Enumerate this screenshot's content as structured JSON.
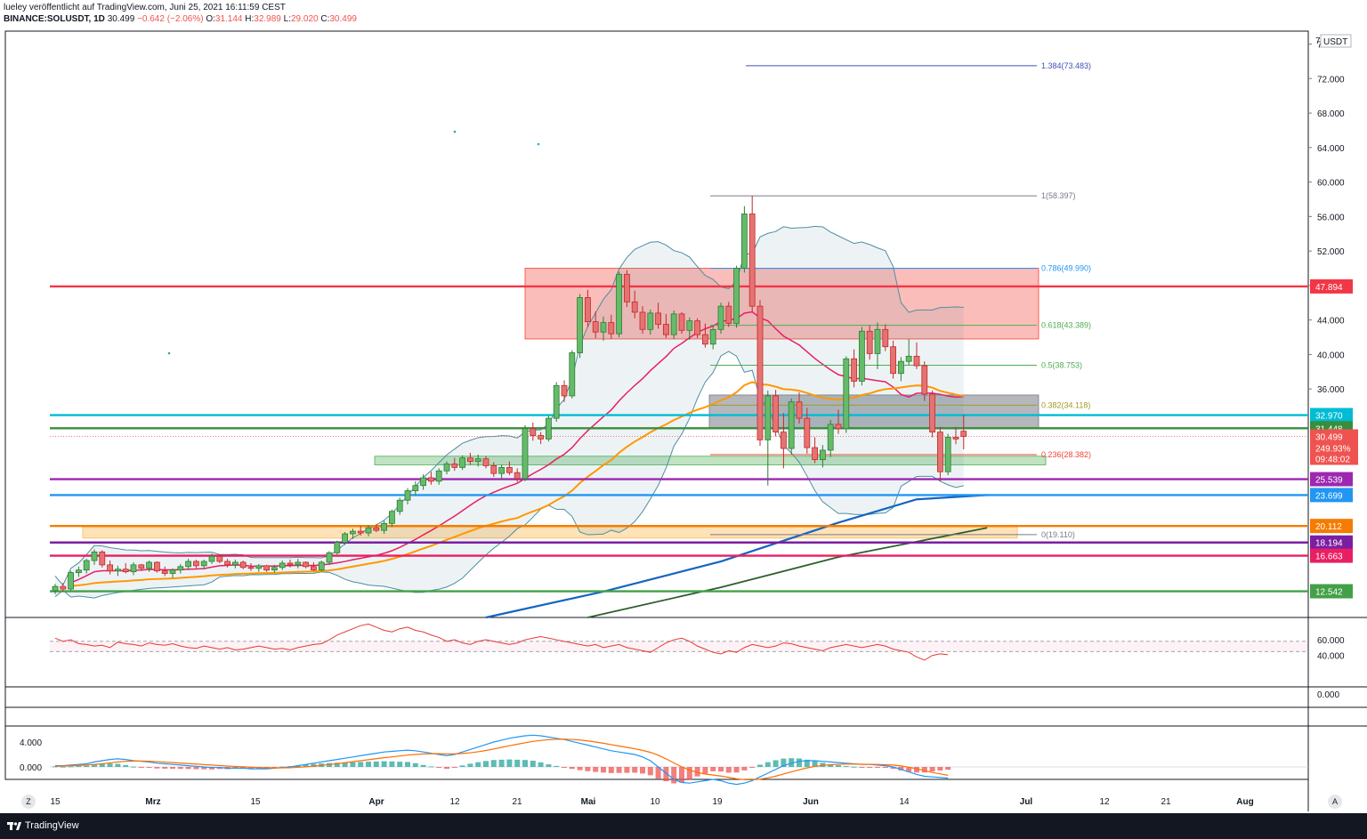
{
  "header": {
    "published_by": "lueley veröffentlicht auf TradingView.com, Juni 25, 2021 16:11:59 CEST",
    "symbol": "BINANCE:SOLUSDT, 1D",
    "last": "30.499",
    "change": "−0.642 (−2.06%)",
    "o_label": "O:",
    "o_value": "31.144",
    "h_label": "H:",
    "h_value": "32.989",
    "l_label": "L:",
    "l_value": "29.020",
    "c_label": "C:",
    "c_value": "30.499"
  },
  "footer": {
    "brand": "TradingView"
  },
  "buttons": {
    "left": "Z",
    "right": "A"
  },
  "colors": {
    "up": "#26a69a",
    "up_body": "#4caf50",
    "down": "#ef5350",
    "ema_orange": "#ff9800",
    "ma_blue": "#1565c0",
    "ma_darkgreen": "#2e5e2e",
    "ma_red": "#e91e63",
    "bollinger": "#4e8ea0"
  },
  "chart_data": {
    "type": "candlestick",
    "title": "",
    "y_axis": {
      "unit": "USDT",
      "unit_label": "USDT",
      "ticks": [
        "76.000",
        "72.000",
        "68.000",
        "64.000",
        "60.000",
        "56.000",
        "52.000",
        "48.000",
        "44.000",
        "40.000",
        "36.000"
      ],
      "range": [
        9.5,
        77.5
      ]
    },
    "x_ticks": [
      "15",
      "Mrz",
      "15",
      "Apr",
      "12",
      "21",
      "Mai",
      "10",
      "19",
      "Jun",
      "14",
      "Jul",
      "12",
      "21",
      "Aug"
    ],
    "horizontal_levels": [
      {
        "value": 47.894,
        "label": "47.894",
        "color": "#f23645"
      },
      {
        "value": 32.97,
        "label": "32.970",
        "color": "#00bcd4"
      },
      {
        "value": 31.448,
        "label": "31.448",
        "color": "#388e3c"
      },
      {
        "value": 25.539,
        "label": "25.539",
        "color": "#9c27b0"
      },
      {
        "value": 23.699,
        "label": "23.699",
        "color": "#2196f3"
      },
      {
        "value": 20.112,
        "label": "20.112",
        "color": "#f57c00"
      },
      {
        "value": 18.194,
        "label": "18.194",
        "color": "#7b1fa2"
      },
      {
        "value": 16.663,
        "label": "16.663",
        "color": "#e91e63"
      },
      {
        "value": 12.542,
        "label": "12.542",
        "color": "#43a047"
      }
    ],
    "price_label": {
      "price": "30.499",
      "change": "249.93%",
      "countdown": "09:48:02"
    },
    "fibonacci": [
      {
        "ratio": "1.384",
        "value": "73.483",
        "label": "1.384(73.483)",
        "color": "#3f51b5"
      },
      {
        "ratio": "1",
        "value": "58.397",
        "label": "1(58.397)",
        "color": "#787b86"
      },
      {
        "ratio": "0.786",
        "value": "49.990",
        "label": "0.786(49.990)",
        "color": "#2196f3"
      },
      {
        "ratio": "0.618",
        "value": "43.389",
        "label": "0.618(43.389)",
        "color": "#4caf50"
      },
      {
        "ratio": "0.5",
        "value": "38.753",
        "label": "0.5(38.753)",
        "color": "#4caf50"
      },
      {
        "ratio": "0.382",
        "value": "34.118",
        "label": "0.382(34.118)",
        "color": "#9e9d24"
      },
      {
        "ratio": "0.236",
        "value": "28.382",
        "label": "0.236(28.382)",
        "color": "#f44336"
      },
      {
        "ratio": "0",
        "value": "19.110",
        "label": "0(19.110)",
        "color": "#787b86"
      }
    ],
    "zones": [
      {
        "name": "resistance",
        "top": 50.0,
        "bottom": 41.8,
        "color": "rgba(244,67,54,0.35)"
      },
      {
        "name": "consolidation",
        "top": 35.3,
        "bottom": 31.5,
        "color": "rgba(120,123,134,0.55)"
      },
      {
        "name": "support-green",
        "top": 28.2,
        "bottom": 27.2,
        "color": "rgba(76,175,80,0.35)"
      },
      {
        "name": "support-orange",
        "top": 20.0,
        "bottom": 18.7,
        "color": "rgba(255,183,77,0.40)"
      }
    ],
    "rsi": {
      "ticks": [
        "60.000",
        "40.000",
        "0.000"
      ],
      "band": [
        45,
        55
      ],
      "values": [
        62,
        58,
        60,
        55,
        54,
        52,
        53,
        50,
        57,
        55,
        54,
        52,
        56,
        54,
        53,
        55,
        52,
        50,
        49,
        52,
        50,
        48,
        50,
        47,
        48,
        50,
        52,
        50,
        48,
        49,
        47,
        50,
        52,
        54,
        55,
        60,
        66,
        70,
        74,
        78,
        80,
        76,
        72,
        70,
        74,
        76,
        72,
        70,
        66,
        63,
        58,
        60,
        56,
        54,
        58,
        60,
        58,
        56,
        54,
        56,
        60,
        62,
        64,
        62,
        60,
        58,
        56,
        54,
        52,
        54,
        50,
        52,
        54,
        50,
        48,
        46,
        44,
        50,
        56,
        60,
        62,
        58,
        52,
        48,
        44,
        42,
        46,
        44,
        50,
        54,
        52,
        50,
        52,
        56,
        55,
        52,
        50,
        48,
        46,
        50,
        52,
        54,
        52,
        50,
        52,
        54,
        52,
        48,
        46,
        44,
        38,
        34,
        40,
        42,
        41
      ]
    },
    "macd": {
      "ticks": [
        "4.000",
        "0.000"
      ],
      "macd": [
        0.2,
        0.2,
        0.3,
        0.4,
        0.5,
        0.8,
        1.0,
        1.2,
        1.3,
        1.2,
        1.0,
        0.9,
        0.8,
        0.6,
        0.5,
        0.4,
        0.3,
        0.2,
        0.1,
        0.0,
        -0.1,
        -0.1,
        -0.2,
        -0.2,
        -0.2,
        -0.3,
        -0.3,
        -0.3,
        -0.2,
        -0.1,
        0.0,
        0.2,
        0.4,
        0.6,
        0.8,
        1.0,
        1.2,
        1.4,
        1.6,
        1.8,
        2.0,
        2.2,
        2.4,
        2.5,
        2.6,
        2.7,
        2.6,
        2.4,
        2.2,
        2.0,
        1.8,
        2.0,
        2.4,
        2.8,
        3.2,
        3.6,
        4.0,
        4.3,
        4.6,
        4.8,
        5.0,
        5.1,
        5.0,
        4.8,
        4.6,
        4.4,
        4.1,
        3.8,
        3.5,
        3.2,
        2.9,
        2.6,
        2.4,
        2.2,
        2.0,
        1.6,
        1.0,
        0.0,
        -1.0,
        -2.0,
        -2.5,
        -2.6,
        -2.4,
        -2.2,
        -2.0,
        -2.2,
        -2.6,
        -2.8,
        -2.6,
        -2.2,
        -1.6,
        -1.0,
        -0.4,
        0.2,
        0.6,
        0.9,
        1.0,
        1.0,
        0.9,
        0.8,
        0.7,
        0.6,
        0.5,
        0.4,
        0.4,
        0.3,
        0.2,
        0.0,
        -0.4,
        -0.8,
        -1.2,
        -1.5,
        -1.6,
        -1.7,
        -1.8
      ],
      "signal": [
        0.1,
        0.15,
        0.2,
        0.25,
        0.3,
        0.4,
        0.5,
        0.65,
        0.8,
        0.9,
        0.95,
        0.95,
        0.92,
        0.85,
        0.78,
        0.7,
        0.62,
        0.54,
        0.46,
        0.38,
        0.3,
        0.22,
        0.15,
        0.08,
        0.02,
        -0.04,
        -0.1,
        -0.14,
        -0.16,
        -0.15,
        -0.12,
        -0.06,
        0.02,
        0.12,
        0.24,
        0.38,
        0.52,
        0.68,
        0.84,
        1.0,
        1.16,
        1.32,
        1.48,
        1.62,
        1.76,
        1.9,
        2.0,
        2.08,
        2.12,
        2.12,
        2.1,
        2.1,
        2.16,
        2.28,
        2.44,
        2.64,
        2.88,
        3.14,
        3.4,
        3.64,
        3.88,
        4.1,
        4.26,
        4.38,
        4.44,
        4.46,
        4.42,
        4.32,
        4.18,
        4.0,
        3.8,
        3.58,
        3.36,
        3.14,
        2.92,
        2.66,
        2.34,
        1.88,
        1.3,
        0.64,
        0.02,
        -0.5,
        -0.88,
        -1.14,
        -1.3,
        -1.46,
        -1.68,
        -1.9,
        -2.04,
        -2.06,
        -1.96,
        -1.76,
        -1.48,
        -1.14,
        -0.8,
        -0.46,
        -0.16,
        0.08,
        0.24,
        0.36,
        0.42,
        0.46,
        0.46,
        0.44,
        0.42,
        0.4,
        0.36,
        0.3,
        0.16,
        -0.04,
        -0.3,
        -0.6,
        -0.88,
        -1.12,
        -1.34
      ]
    },
    "candles": [
      [
        12.6,
        13.4,
        12.2,
        13.1
      ],
      [
        13.1,
        13.5,
        12.5,
        12.8
      ],
      [
        12.8,
        14.9,
        12.6,
        14.7
      ],
      [
        14.7,
        15.4,
        14.2,
        15.0
      ],
      [
        15.0,
        16.3,
        14.6,
        16.1
      ],
      [
        16.1,
        17.4,
        15.6,
        17.1
      ],
      [
        17.1,
        17.3,
        15.3,
        15.6
      ],
      [
        15.6,
        16.1,
        14.5,
        14.9
      ],
      [
        14.9,
        15.5,
        14.3,
        15.1
      ],
      [
        15.1,
        15.8,
        14.6,
        14.8
      ],
      [
        14.8,
        15.9,
        14.4,
        15.6
      ],
      [
        15.6,
        15.7,
        14.9,
        15.2
      ],
      [
        15.2,
        16.1,
        14.8,
        15.9
      ],
      [
        15.9,
        16.0,
        14.7,
        14.9
      ],
      [
        14.9,
        15.4,
        14.3,
        14.6
      ],
      [
        14.6,
        15.2,
        14.1,
        15.0
      ],
      [
        15.0,
        15.7,
        14.6,
        15.4
      ],
      [
        15.4,
        16.3,
        15.0,
        16.0
      ],
      [
        16.0,
        16.2,
        15.2,
        15.5
      ],
      [
        15.5,
        16.2,
        15.1,
        16.0
      ],
      [
        16.0,
        16.9,
        15.7,
        16.6
      ],
      [
        16.6,
        16.8,
        15.8,
        16.0
      ],
      [
        16.0,
        16.3,
        15.3,
        15.6
      ],
      [
        15.6,
        16.2,
        15.2,
        15.9
      ],
      [
        15.9,
        16.1,
        15.1,
        15.3
      ],
      [
        15.3,
        15.8,
        14.9,
        15.2
      ],
      [
        15.2,
        15.7,
        14.8,
        15.5
      ],
      [
        15.5,
        15.6,
        14.8,
        15.0
      ],
      [
        15.0,
        15.6,
        14.7,
        15.3
      ],
      [
        15.3,
        16.1,
        15.0,
        15.8
      ],
      [
        15.8,
        16.2,
        15.3,
        15.6
      ],
      [
        15.6,
        16.3,
        15.2,
        15.9
      ],
      [
        15.9,
        16.0,
        15.2,
        15.4
      ],
      [
        15.4,
        15.9,
        14.9,
        15.0
      ],
      [
        15.0,
        16.1,
        14.8,
        15.9
      ],
      [
        15.9,
        17.2,
        15.6,
        17.0
      ],
      [
        17.0,
        18.4,
        16.8,
        18.2
      ],
      [
        18.2,
        19.4,
        17.9,
        19.2
      ],
      [
        19.2,
        19.8,
        18.6,
        19.5
      ],
      [
        19.5,
        20.1,
        19.0,
        19.3
      ],
      [
        19.3,
        20.2,
        18.9,
        19.9
      ],
      [
        19.9,
        20.3,
        19.4,
        19.6
      ],
      [
        19.6,
        20.7,
        19.2,
        20.4
      ],
      [
        20.4,
        22.0,
        20.0,
        21.8
      ],
      [
        21.8,
        23.4,
        21.4,
        23.1
      ],
      [
        23.1,
        24.5,
        22.6,
        24.2
      ],
      [
        24.2,
        25.3,
        23.7,
        24.8
      ],
      [
        24.8,
        26.1,
        24.3,
        25.7
      ],
      [
        25.7,
        26.4,
        24.9,
        25.3
      ],
      [
        25.3,
        26.8,
        24.9,
        26.5
      ],
      [
        26.5,
        27.6,
        26.1,
        27.3
      ],
      [
        27.3,
        28.0,
        26.5,
        26.9
      ],
      [
        26.9,
        28.3,
        26.6,
        28.0
      ],
      [
        28.0,
        28.6,
        27.2,
        27.6
      ],
      [
        27.6,
        28.4,
        27.0,
        27.9
      ],
      [
        27.9,
        28.2,
        26.8,
        27.1
      ],
      [
        27.1,
        27.5,
        25.8,
        26.2
      ],
      [
        26.2,
        27.2,
        25.5,
        26.9
      ],
      [
        26.9,
        27.6,
        26.0,
        26.3
      ],
      [
        26.3,
        26.8,
        25.2,
        25.6
      ],
      [
        25.6,
        31.8,
        25.3,
        31.4
      ],
      [
        31.4,
        32.1,
        30.0,
        30.6
      ],
      [
        30.6,
        31.0,
        29.6,
        30.2
      ],
      [
        30.2,
        32.9,
        29.9,
        32.6
      ],
      [
        32.6,
        36.8,
        32.2,
        36.4
      ],
      [
        36.4,
        37.0,
        34.5,
        35.2
      ],
      [
        35.2,
        40.5,
        34.9,
        40.2
      ],
      [
        40.2,
        47.0,
        39.6,
        46.6
      ],
      [
        46.6,
        47.5,
        43.2,
        43.8
      ],
      [
        43.8,
        45.0,
        41.9,
        42.6
      ],
      [
        42.6,
        44.4,
        41.6,
        43.7
      ],
      [
        43.7,
        44.6,
        41.8,
        42.4
      ],
      [
        42.4,
        49.6,
        42.0,
        49.3
      ],
      [
        49.3,
        49.8,
        45.5,
        46.1
      ],
      [
        46.1,
        47.4,
        44.2,
        44.9
      ],
      [
        44.9,
        45.6,
        42.4,
        42.9
      ],
      [
        42.9,
        45.2,
        42.3,
        44.8
      ],
      [
        44.8,
        46.0,
        43.0,
        43.5
      ],
      [
        43.5,
        44.7,
        41.9,
        42.3
      ],
      [
        42.3,
        45.1,
        41.8,
        44.7
      ],
      [
        44.7,
        44.9,
        42.4,
        42.8
      ],
      [
        42.8,
        44.3,
        41.7,
        43.9
      ],
      [
        43.9,
        44.2,
        41.9,
        42.3
      ],
      [
        42.3,
        43.6,
        40.8,
        41.2
      ],
      [
        41.2,
        43.4,
        40.6,
        42.9
      ],
      [
        42.9,
        46.0,
        42.4,
        45.6
      ],
      [
        45.6,
        46.1,
        43.2,
        43.6
      ],
      [
        43.6,
        50.3,
        43.1,
        50.0
      ],
      [
        50.0,
        57.2,
        49.5,
        56.3
      ],
      [
        56.3,
        58.4,
        45.0,
        45.6
      ],
      [
        45.6,
        46.3,
        29.4,
        30.1
      ],
      [
        30.1,
        35.8,
        24.8,
        35.2
      ],
      [
        35.2,
        35.9,
        30.5,
        31.0
      ],
      [
        31.0,
        33.2,
        26.8,
        29.1
      ],
      [
        29.1,
        34.9,
        28.4,
        34.5
      ],
      [
        34.5,
        35.6,
        32.0,
        32.6
      ],
      [
        32.6,
        33.8,
        28.5,
        29.2
      ],
      [
        29.2,
        30.4,
        27.4,
        27.8
      ],
      [
        27.8,
        29.5,
        26.9,
        28.9
      ],
      [
        28.9,
        32.4,
        28.1,
        31.9
      ],
      [
        31.9,
        33.6,
        30.8,
        31.4
      ],
      [
        31.4,
        39.8,
        30.9,
        39.5
      ],
      [
        39.5,
        40.6,
        36.2,
        36.9
      ],
      [
        36.9,
        43.2,
        36.4,
        42.7
      ],
      [
        42.7,
        43.4,
        39.4,
        40.1
      ],
      [
        40.1,
        43.7,
        38.3,
        42.9
      ],
      [
        42.9,
        43.5,
        40.4,
        40.9
      ],
      [
        40.9,
        41.6,
        37.2,
        37.8
      ],
      [
        37.8,
        39.7,
        36.9,
        39.2
      ],
      [
        39.2,
        41.8,
        38.8,
        39.8
      ],
      [
        39.8,
        41.4,
        38.3,
        38.7
      ],
      [
        38.7,
        39.2,
        34.6,
        35.4
      ],
      [
        35.4,
        35.8,
        30.4,
        31.0
      ],
      [
        31.0,
        31.6,
        25.3,
        26.4
      ],
      [
        26.4,
        30.8,
        26.0,
        30.4
      ],
      [
        30.4,
        31.6,
        29.6,
        30.2
      ],
      [
        31.1,
        33.0,
        29.0,
        30.5
      ]
    ]
  }
}
